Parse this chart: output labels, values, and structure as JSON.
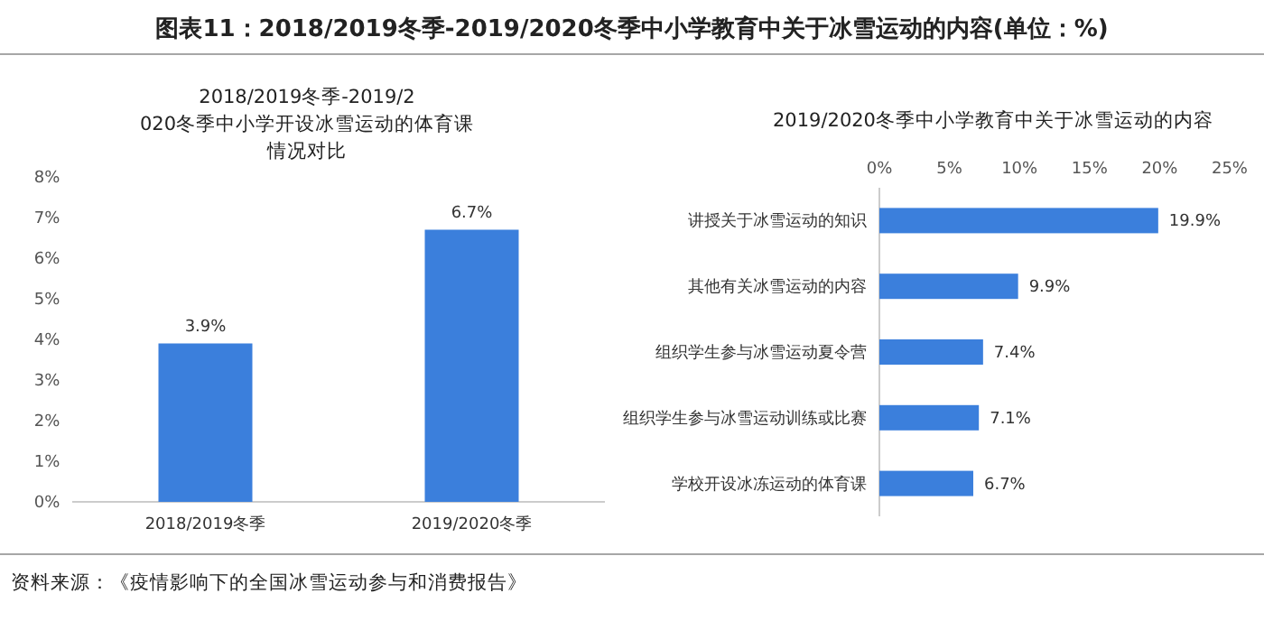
{
  "chart_data": [
    {
      "type": "bar",
      "title": "2018/2019冬季-2019/2020冬季中小学开设冰雪运动的体育课情况对比",
      "categories": [
        "2018/2019冬季",
        "2019/2020冬季"
      ],
      "values": [
        3.9,
        6.7
      ],
      "color": "#3b7fdc",
      "value_labels": [
        "3.9%",
        "6.7%"
      ],
      "ylim": [
        0,
        8
      ],
      "yticks": [
        {
          "value": 0,
          "label": "0%"
        },
        {
          "value": 1,
          "label": "1%"
        },
        {
          "value": 2,
          "label": "2%"
        },
        {
          "value": 3,
          "label": "3%"
        },
        {
          "value": 4,
          "label": "4%"
        },
        {
          "value": 5,
          "label": "5%"
        },
        {
          "value": 6,
          "label": "6%"
        },
        {
          "value": 7,
          "label": "7%"
        },
        {
          "value": 8,
          "label": "8%"
        }
      ],
      "annotations": [
        "图表11：2018/2019冬季-2019/2020冬季中小学教育中关于冰雪运动的内容(单位：%)",
        "资料来源：《疫情影响下的全国冰雪运动参与和消费报告》"
      ]
    },
    {
      "type": "bar",
      "orientation": "horizontal",
      "title": "2019/2020冬季中小学教育中关于冰雪运动的内容",
      "categories": [
        "讲授关于冰雪运动的知识",
        "其他有关冰雪运动的内容",
        "组织学生参与冰雪运动夏令营",
        "组织学生参与冰雪运动训练或比赛",
        "学校开设冰冻运动的体育课"
      ],
      "values": [
        19.9,
        9.9,
        7.4,
        7.1,
        6.7
      ],
      "color": "#3b7fdc",
      "value_labels": [
        "19.9%",
        "9.9%",
        "7.4%",
        "7.1%",
        "6.7%"
      ],
      "xlim": [
        0,
        25
      ],
      "xticks": [
        {
          "value": 0,
          "label": "0%"
        },
        {
          "value": 5,
          "label": "5%"
        },
        {
          "value": 10,
          "label": "10%"
        },
        {
          "value": 15,
          "label": "15%"
        },
        {
          "value": 20,
          "label": "20%"
        },
        {
          "value": 25,
          "label": "25%"
        }
      ]
    }
  ]
}
